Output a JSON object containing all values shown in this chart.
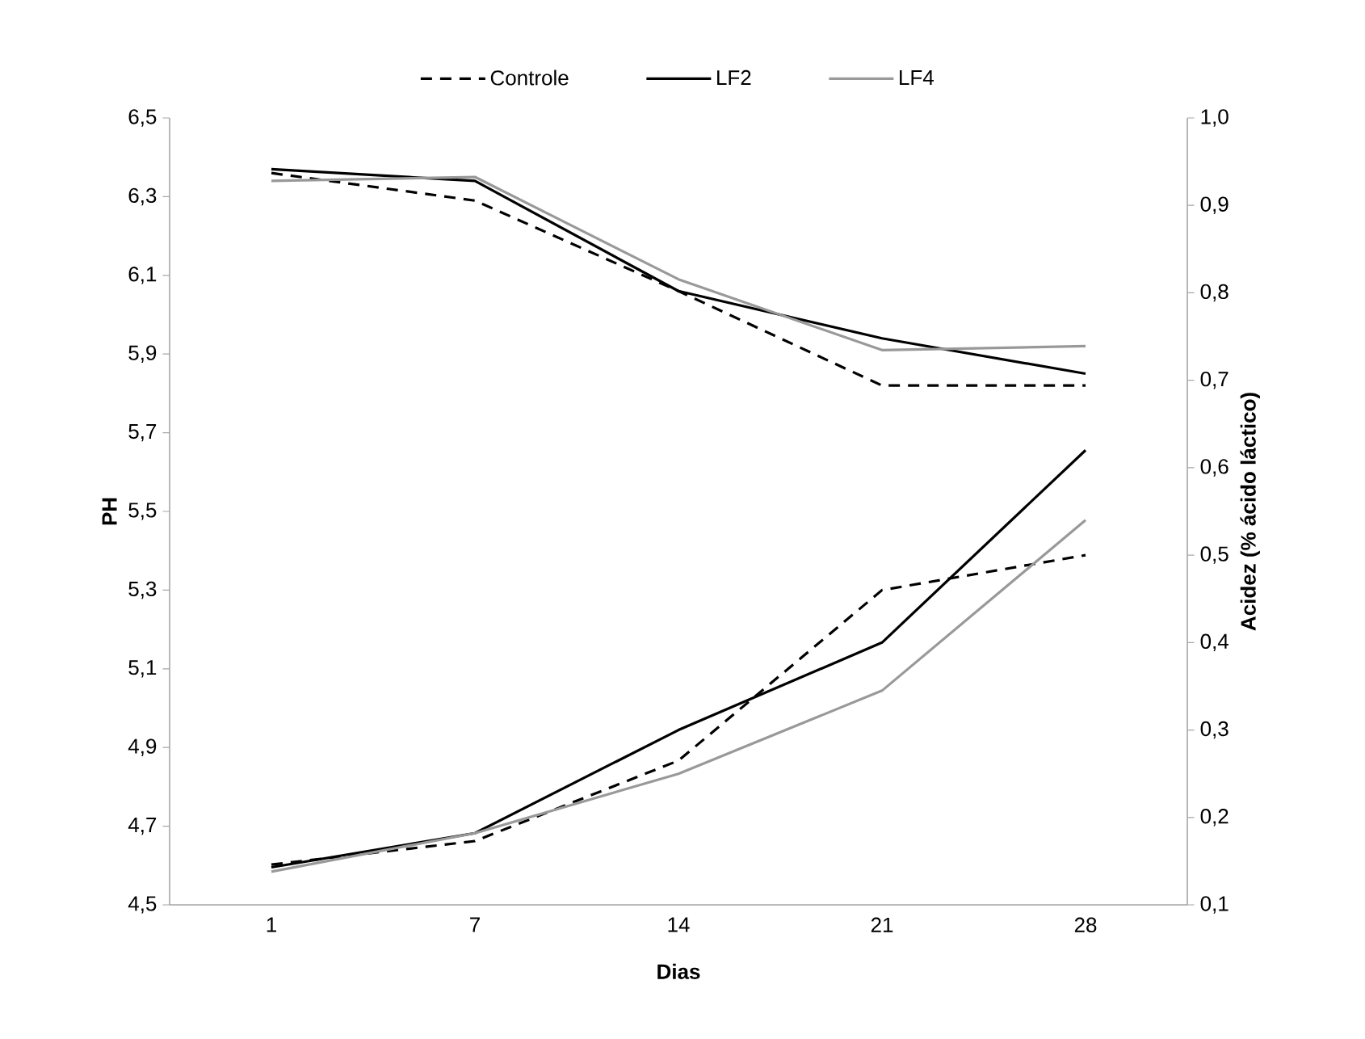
{
  "chart_data": {
    "type": "line",
    "categories": [
      "1",
      "7",
      "14",
      "21",
      "28"
    ],
    "xlabel": "Dias",
    "ylabel": "PH",
    "y2label": "Acidez (% ácido láctico)",
    "legend": "top",
    "ylim": [
      4.5,
      6.5
    ],
    "yticks": [
      {
        "value": 4.5,
        "label": "4,5"
      },
      {
        "value": 4.7,
        "label": "4,7"
      },
      {
        "value": 4.9,
        "label": "4,9"
      },
      {
        "value": 5.1,
        "label": "5,1"
      },
      {
        "value": 5.3,
        "label": "5,3"
      },
      {
        "value": 5.5,
        "label": "5,5"
      },
      {
        "value": 5.7,
        "label": "5,7"
      },
      {
        "value": 5.9,
        "label": "5,9"
      },
      {
        "value": 6.1,
        "label": "6,1"
      },
      {
        "value": 6.3,
        "label": "6,3"
      },
      {
        "value": 6.5,
        "label": "6,5"
      }
    ],
    "y2lim": [
      0.1,
      1.0
    ],
    "y2ticks": [
      {
        "value": 0.1,
        "label": "0,1"
      },
      {
        "value": 0.2,
        "label": "0,2"
      },
      {
        "value": 0.3,
        "label": "0,3"
      },
      {
        "value": 0.4,
        "label": "0,4"
      },
      {
        "value": 0.5,
        "label": "0,5"
      },
      {
        "value": 0.6,
        "label": "0,6"
      },
      {
        "value": 0.7,
        "label": "0,7"
      },
      {
        "value": 0.8,
        "label": "0,8"
      },
      {
        "value": 0.9,
        "label": "0,9"
      },
      {
        "value": 1.0,
        "label": "1,0"
      }
    ],
    "series": [
      {
        "name": "Controle",
        "color": "#000000",
        "line_style": "dashed",
        "values": [
          6.36,
          6.29,
          6.06,
          5.82,
          5.82
        ]
      },
      {
        "name": "LF2",
        "color": "#000000",
        "line_style": "solid",
        "values": [
          6.37,
          6.34,
          6.06,
          5.94,
          5.85
        ]
      },
      {
        "name": "LF4",
        "color": "#999999",
        "line_style": "solid",
        "values": [
          6.34,
          6.35,
          6.09,
          5.91,
          5.92
        ]
      },
      {
        "color": "#000000",
        "line_style": "dashed",
        "axis": "y2",
        "values": [
          0.146,
          0.173,
          0.265,
          0.46,
          0.5
        ]
      },
      {
        "color": "#000000",
        "line_style": "solid",
        "axis": "y2",
        "values": [
          0.143,
          0.182,
          0.3,
          0.4,
          0.62
        ]
      },
      {
        "color": "#999999",
        "line_style": "solid",
        "axis": "y2",
        "values": [
          0.138,
          0.182,
          0.25,
          0.345,
          0.54
        ]
      }
    ]
  }
}
